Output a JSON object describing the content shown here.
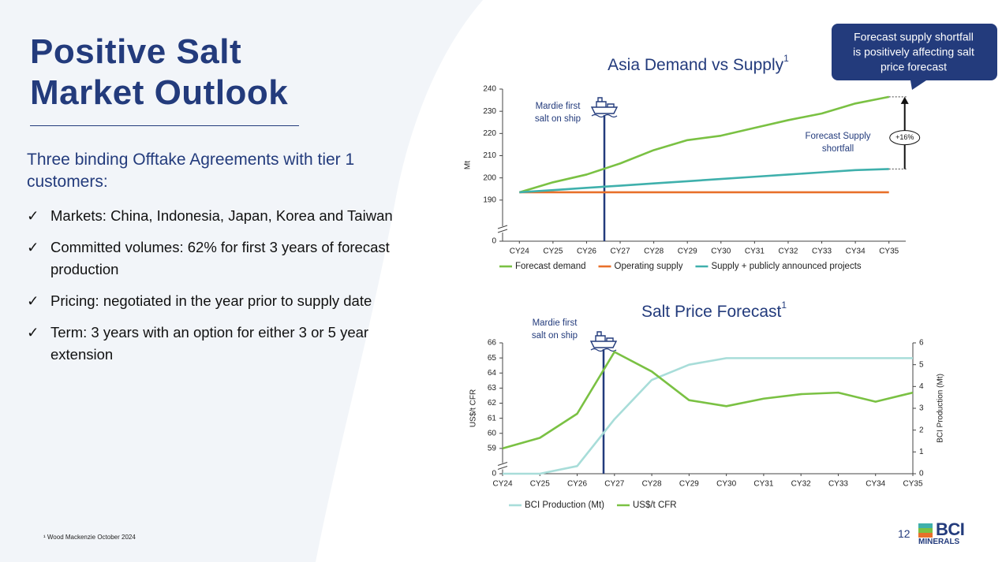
{
  "header": {
    "title": [
      "Positive Salt",
      "Market Outlook"
    ]
  },
  "subtitle": "Three binding Offtake Agreements with tier 1 customers:",
  "bullets": [
    "Markets: China, Indonesia, Japan, Korea and Taiwan",
    "Committed volumes: 62% for first 3 years of forecast production",
    "Pricing: negotiated in the year prior to supply date",
    "Term: 3 years with an option for either 3 or 5 year extension"
  ],
  "footnote": "¹ Wood Mackenzie October 2024",
  "page_number": "12",
  "logo": {
    "top": "BCI",
    "bottom": "MINERALS"
  },
  "chart_data": [
    {
      "type": "line",
      "title": "Asia Demand vs Supply",
      "title_note": "1",
      "categories": [
        "CY24",
        "CY25",
        "CY26",
        "CY27",
        "CY28",
        "CY29",
        "CY30",
        "CY31",
        "CY32",
        "CY33",
        "CY34",
        "CY35"
      ],
      "series": [
        {
          "name": "Forecast demand",
          "color": "#7ac143",
          "values": [
            193.5,
            198,
            201.5,
            206.5,
            212.5,
            217,
            219,
            222.5,
            226,
            229,
            233.5,
            236.5
          ]
        },
        {
          "name": "Operating supply",
          "color": "#e8702a",
          "values": [
            193.5,
            193.5,
            193.5,
            193.5,
            193.5,
            193.5,
            193.5,
            193.5,
            193.5,
            193.5,
            193.5,
            193.5
          ]
        },
        {
          "name": "Supply + publicly announced projects",
          "color": "#3fb0ac",
          "values": [
            193.5,
            194.5,
            195.5,
            196.5,
            197.5,
            198.5,
            199.5,
            200.5,
            201.5,
            202.5,
            203.5,
            204
          ]
        }
      ],
      "ylim": [
        0,
        240
      ],
      "axis_break": [
        0,
        180
      ],
      "yticks": [
        0,
        190,
        200,
        210,
        220,
        230,
        240
      ],
      "ylabel": "Mt",
      "legend": "bottom",
      "annotations": {
        "marker": [
          "Mardie first",
          "salt on ship"
        ],
        "shortfall": [
          "Forecast Supply",
          "shortfall"
        ],
        "change": "+16%",
        "callout": [
          "Forecast supply shortfall",
          "is positively affecting salt",
          "price forecast"
        ]
      }
    },
    {
      "type": "line",
      "title": "Salt Price Forecast",
      "title_note": "1",
      "categories": [
        "CY24",
        "CY25",
        "CY26",
        "CY27",
        "CY28",
        "CY29",
        "CY30",
        "CY31",
        "CY32",
        "CY33",
        "CY34",
        "CY35"
      ],
      "series": [
        {
          "name": "BCI Production (Mt)",
          "color": "#a8ddd9",
          "axis": "y2",
          "values": [
            0,
            0,
            0.35,
            2.5,
            4.3,
            5.0,
            5.3,
            5.3,
            5.3,
            5.3,
            5.3,
            5.3
          ]
        },
        {
          "name": "US$/t CFR",
          "color": "#7ac143",
          "values": [
            59.0,
            59.7,
            61.3,
            65.4,
            64.1,
            62.2,
            61.8,
            62.3,
            62.6,
            62.7,
            62.1,
            62.7
          ]
        }
      ],
      "ylim": [
        0,
        66
      ],
      "axis_break": [
        0,
        58
      ],
      "yticks": [
        0,
        59,
        60,
        61,
        62,
        63,
        64,
        65,
        66
      ],
      "ylabel": "US$/t CFR",
      "y2lim": [
        0,
        6
      ],
      "y2ticks": [
        0,
        1,
        2,
        3,
        4,
        5,
        6
      ],
      "y2label": "BCI Production (Mt)",
      "legend": "bottom",
      "annotations": {
        "marker": [
          "Mardie first",
          "salt on ship"
        ]
      }
    }
  ]
}
